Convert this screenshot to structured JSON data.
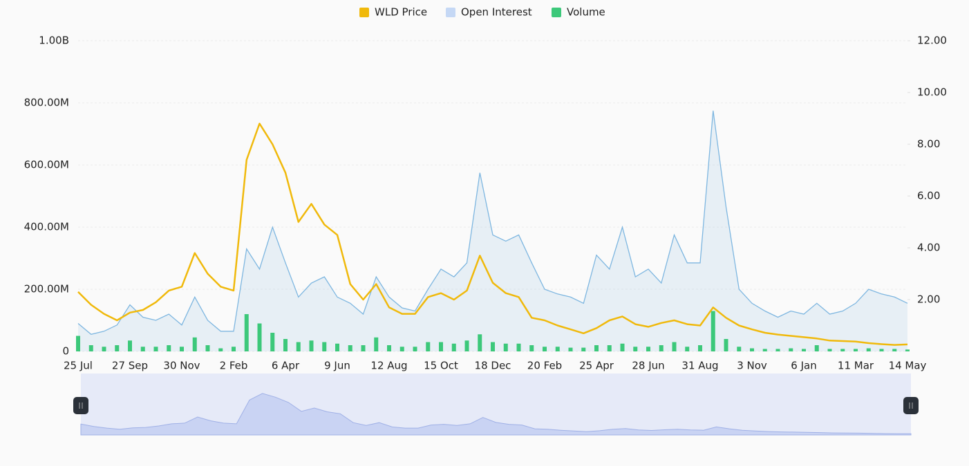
{
  "chart_data": {
    "type": "combo",
    "categories": [
      "25 Jul",
      null,
      null,
      null,
      "27 Sep",
      null,
      null,
      null,
      "30 Nov",
      null,
      null,
      null,
      "2 Feb",
      null,
      null,
      null,
      "6 Apr",
      null,
      null,
      null,
      "9 Jun",
      null,
      null,
      null,
      "12 Aug",
      null,
      null,
      null,
      "15 Oct",
      null,
      null,
      null,
      "18 Dec",
      null,
      null,
      null,
      "20 Feb",
      null,
      null,
      null,
      "25 Apr",
      null,
      null,
      null,
      "28 Jun",
      null,
      null,
      null,
      "31 Aug",
      null,
      null,
      null,
      "3 Nov",
      null,
      null,
      null,
      "6 Jan",
      null,
      null,
      null,
      "11 Mar",
      null,
      null,
      null,
      "14 May"
    ],
    "series": [
      {
        "name": "WLD Price",
        "color": "#f0b90b",
        "axis": "y2",
        "kind": "line",
        "values": [
          2.3,
          1.8,
          1.45,
          1.2,
          1.5,
          1.6,
          1.9,
          2.35,
          2.5,
          3.8,
          3.0,
          2.5,
          2.35,
          7.4,
          8.8,
          8.0,
          6.9,
          5.0,
          5.7,
          4.9,
          4.5,
          2.6,
          2.0,
          2.6,
          1.7,
          1.45,
          1.45,
          2.1,
          2.25,
          2.0,
          2.35,
          3.7,
          2.65,
          2.25,
          2.1,
          1.3,
          1.2,
          1.0,
          0.85,
          0.7,
          0.9,
          1.2,
          1.35,
          1.05,
          0.95,
          1.1,
          1.2,
          1.05,
          1.0,
          1.7,
          1.3,
          1.0,
          0.85,
          0.72,
          0.65,
          0.6,
          0.55,
          0.5,
          0.42,
          0.4,
          0.38,
          0.32,
          0.28,
          0.25,
          0.27
        ]
      },
      {
        "name": "Open Interest",
        "color": "#7db6e0",
        "kind": "area",
        "values": [
          90000000,
          55000000,
          65000000,
          85000000,
          150000000,
          110000000,
          100000000,
          120000000,
          85000000,
          175000000,
          100000000,
          65000000,
          65000000,
          330000000,
          265000000,
          400000000,
          285000000,
          175000000,
          220000000,
          240000000,
          175000000,
          155000000,
          120000000,
          240000000,
          175000000,
          140000000,
          130000000,
          200000000,
          265000000,
          240000000,
          285000000,
          575000000,
          375000000,
          355000000,
          375000000,
          285000000,
          200000000,
          185000000,
          175000000,
          155000000,
          310000000,
          265000000,
          400000000,
          240000000,
          265000000,
          220000000,
          375000000,
          285000000,
          285000000,
          775000000,
          465000000,
          200000000,
          155000000,
          130000000,
          110000000,
          130000000,
          120000000,
          155000000,
          120000000,
          130000000,
          155000000,
          200000000,
          185000000,
          175000000,
          155000000
        ]
      },
      {
        "name": "Volume",
        "color": "#3cc87a",
        "kind": "bar",
        "values": [
          50000000,
          20000000,
          15000000,
          20000000,
          35000000,
          15000000,
          15000000,
          20000000,
          15000000,
          45000000,
          20000000,
          10000000,
          15000000,
          120000000,
          90000000,
          60000000,
          40000000,
          30000000,
          35000000,
          30000000,
          25000000,
          20000000,
          20000000,
          45000000,
          20000000,
          15000000,
          15000000,
          30000000,
          30000000,
          25000000,
          35000000,
          55000000,
          30000000,
          25000000,
          25000000,
          20000000,
          15000000,
          15000000,
          12000000,
          12000000,
          20000000,
          20000000,
          25000000,
          15000000,
          15000000,
          20000000,
          30000000,
          15000000,
          20000000,
          130000000,
          40000000,
          15000000,
          10000000,
          8000000,
          8000000,
          10000000,
          8000000,
          20000000,
          8000000,
          8000000,
          8000000,
          10000000,
          8000000,
          8000000,
          6000000
        ]
      }
    ],
    "ylim": [
      0,
      1000000000
    ],
    "yticks": [
      0,
      {
        "value": 200000000,
        "label": "200.00M"
      },
      {
        "value": 400000000,
        "label": "400.00M"
      },
      {
        "value": 600000000,
        "label": "600.00M"
      },
      {
        "value": 800000000,
        "label": "800.00M"
      },
      {
        "value": 1000000000,
        "label": "1.00B"
      }
    ],
    "y2lim": [
      0,
      12
    ],
    "y2ticks": [
      {
        "value": 2,
        "label": "2.00"
      },
      {
        "value": 4,
        "label": "4.00"
      },
      {
        "value": 6,
        "label": "6.00"
      },
      {
        "value": 8,
        "label": "8.00"
      },
      {
        "value": 10,
        "label": "10.00"
      },
      {
        "value": 12,
        "label": "12.00"
      }
    ],
    "grid": true,
    "legend": "top"
  }
}
